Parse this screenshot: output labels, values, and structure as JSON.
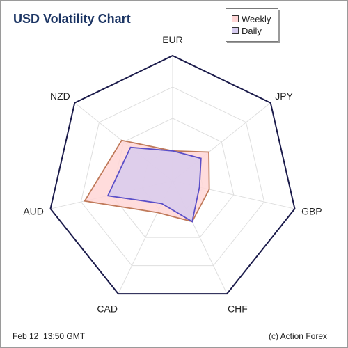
{
  "chart_data": {
    "type": "radar",
    "title": "USD Volatility Chart",
    "categories": [
      "EUR",
      "JPY",
      "GBP",
      "CHF",
      "CAD",
      "AUD",
      "NZD"
    ],
    "rmax": 100,
    "grid_levels": 4,
    "legend_position": "top-right",
    "series": [
      {
        "name": "Weekly",
        "values": [
          24,
          37,
          30,
          36,
          28,
          72,
          52
        ],
        "fill": "#ffd6d6",
        "stroke": "#c07a5a"
      },
      {
        "name": "Daily",
        "values": [
          24,
          29,
          22,
          36,
          20,
          53,
          43
        ],
        "fill": "#d6cbef",
        "stroke": "#5a4ec8"
      }
    ],
    "colors": {
      "outline": "#1a1a4a",
      "grid": "#dedede"
    }
  },
  "footer": {
    "timestamp": "Feb 12  13:50 GMT",
    "credit": "(c) Action Forex"
  }
}
